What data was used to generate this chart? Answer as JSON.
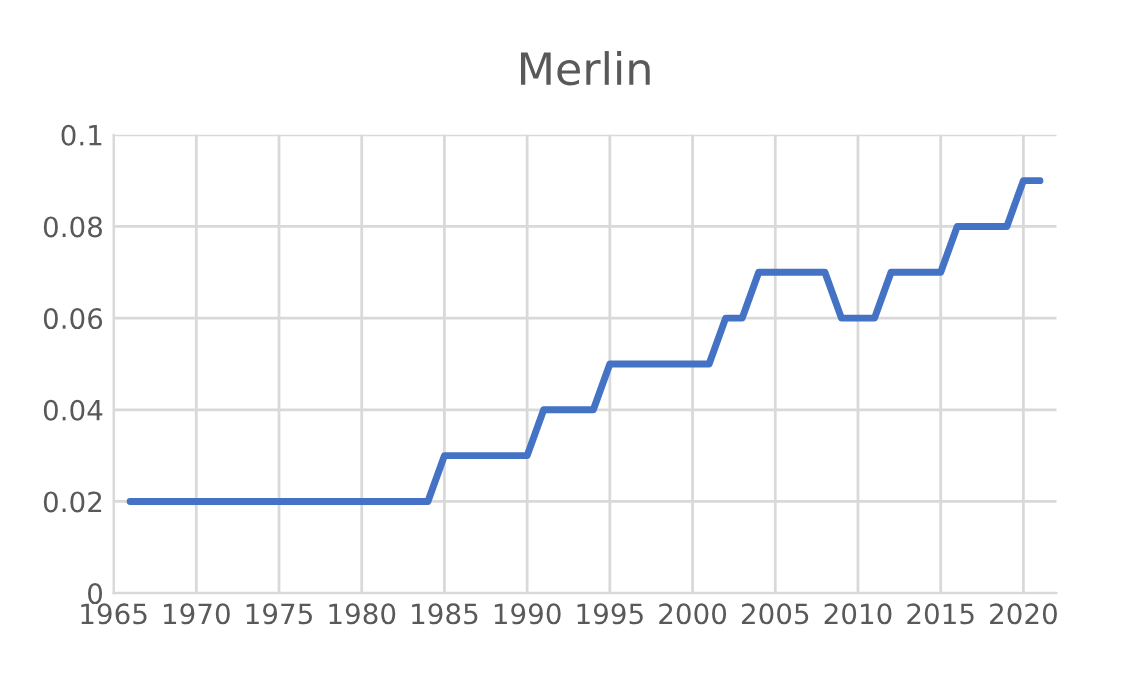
{
  "chart_data": {
    "type": "line",
    "title": "Merlin",
    "x": [
      1966,
      1984,
      1985,
      1990,
      1991,
      1994,
      1995,
      2001,
      2002,
      2003,
      2004,
      2008,
      2009,
      2011,
      2012,
      2015,
      2016,
      2019,
      2020,
      2021
    ],
    "series": [
      {
        "color": "#4472c4",
        "values": [
          0.02,
          0.02,
          0.03,
          0.03,
          0.04,
          0.04,
          0.05,
          0.05,
          0.06,
          0.06,
          0.07,
          0.07,
          0.06,
          0.06,
          0.07,
          0.07,
          0.08,
          0.08,
          0.09,
          0.09
        ]
      }
    ],
    "xlim": [
      1965,
      2022
    ],
    "xticks": [
      1965,
      1970,
      1975,
      1980,
      1985,
      1990,
      1995,
      2000,
      2005,
      2010,
      2015,
      2020
    ],
    "ylim": [
      0,
      0.1
    ],
    "yticks": [
      {
        "value": 0,
        "label": "0"
      },
      0.02,
      0.04,
      0.06,
      0.08,
      {
        "value": 0.1,
        "label": "0.1"
      }
    ],
    "grid": true,
    "legend": false
  }
}
